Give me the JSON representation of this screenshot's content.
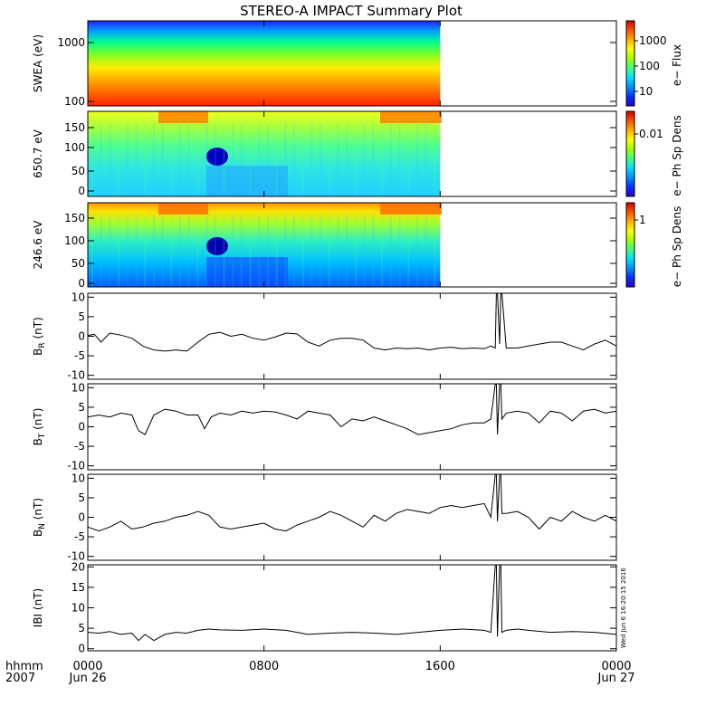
{
  "title": "STEREO-A IMPACT Summary Plot",
  "time_axis": {
    "corner_labels": [
      "hhmm",
      "2007"
    ],
    "ticks": [
      {
        "t": 0,
        "label": "0000",
        "date": "Jun 26"
      },
      {
        "t": 8,
        "label": "0800",
        "date": ""
      },
      {
        "t": 16,
        "label": "1600",
        "date": ""
      },
      {
        "t": 24,
        "label": "0000",
        "date": "Jun 27"
      }
    ],
    "range_hours": [
      0,
      24
    ]
  },
  "colors": {
    "line": "#000000",
    "spectral": [
      "#3000d0",
      "#0030ff",
      "#0090ff",
      "#00e0ff",
      "#40ff80",
      "#a0ff00",
      "#ffff00",
      "#ffb000",
      "#ff5000",
      "#d00000"
    ]
  },
  "side_stamp": "Wed Jun 6 16:20:15 2016",
  "spectrograms": [
    {
      "ylabel": "SWEA (eV)",
      "cbar_label": "e− Flux",
      "y_ticks": [
        "1000",
        "100"
      ],
      "cbar_ticks": [
        "1000",
        "100",
        "10"
      ],
      "data_end_hours": 16
    },
    {
      "ylabel": "650.7 eV",
      "cbar_label": "e− Ph Sp Dens",
      "y_ticks": [
        "150",
        "100",
        "50",
        "0"
      ],
      "cbar_ticks": [
        "0.01"
      ],
      "data_end_hours": 16
    },
    {
      "ylabel": "246.6 eV",
      "cbar_label": "e− Ph Sp Dens",
      "y_ticks": [
        "150",
        "100",
        "50",
        "0"
      ],
      "cbar_ticks": [
        "1"
      ],
      "data_end_hours": 16
    }
  ],
  "chart_data": [
    {
      "type": "line",
      "ylabel": "B_R (nT)",
      "label_main": "B",
      "label_sub": "R",
      "label_unit": " (nT)",
      "ylim": [
        -11,
        11
      ],
      "yticks": [
        10,
        5,
        0,
        -5,
        -10
      ],
      "x": [
        0,
        0.3,
        0.6,
        1,
        1.5,
        2,
        2.5,
        3,
        3.5,
        4,
        4.5,
        5,
        5.5,
        6,
        6.5,
        7,
        7.5,
        8,
        8.5,
        9,
        9.5,
        10,
        10.5,
        11,
        11.5,
        12,
        12.5,
        13,
        13.5,
        14,
        14.5,
        15,
        15.5,
        16,
        16.5,
        17,
        17.5,
        18,
        18.3,
        18.5,
        18.55,
        18.6,
        18.7,
        18.75,
        18.8,
        19,
        19.5,
        20,
        20.5,
        21,
        21.5,
        22,
        22.5,
        23,
        23.5,
        24
      ],
      "values": [
        0.2,
        0.5,
        -1.5,
        0.8,
        0.3,
        -0.5,
        -2.5,
        -3.5,
        -3.8,
        -3.5,
        -3.8,
        -1.5,
        0.5,
        1.0,
        0.0,
        0.5,
        -0.5,
        -1.0,
        -0.2,
        0.8,
        0.6,
        -1.5,
        -2.5,
        -1.0,
        -0.5,
        -0.5,
        -1.0,
        -3.0,
        -3.5,
        -3.0,
        -3.2,
        -3.0,
        -3.5,
        -3.0,
        -2.8,
        -3.2,
        -3.0,
        -3.2,
        -2.5,
        -3.0,
        11,
        11,
        -2.0,
        11,
        11,
        -3.0,
        -3.0,
        -2.5,
        -2.0,
        -1.5,
        -1.5,
        -2.5,
        -3.5,
        -2.0,
        -1.0,
        -2.5
      ]
    },
    {
      "type": "line",
      "ylabel": "B_T (nT)",
      "label_main": "B",
      "label_sub": "T",
      "label_unit": " (nT)",
      "ylim": [
        -11,
        11
      ],
      "yticks": [
        10,
        5,
        0,
        -5,
        -10
      ],
      "x": [
        0,
        0.5,
        1,
        1.5,
        2,
        2.3,
        2.6,
        3,
        3.5,
        4,
        4.5,
        5,
        5.3,
        5.6,
        6,
        6.5,
        7,
        7.5,
        8,
        8.5,
        9,
        9.5,
        10,
        10.5,
        11,
        11.5,
        12,
        12.5,
        13,
        13.5,
        14,
        14.5,
        15,
        15.5,
        16,
        16.5,
        17,
        17.5,
        18,
        18.3,
        18.5,
        18.55,
        18.6,
        18.7,
        18.75,
        18.8,
        19,
        19.5,
        20,
        20.5,
        21,
        21.5,
        22,
        22.5,
        23,
        23.5,
        24
      ],
      "values": [
        2.5,
        3.0,
        2.5,
        3.5,
        3.0,
        -1.0,
        -2.0,
        3.0,
        4.5,
        4.0,
        3.0,
        3.0,
        -0.5,
        2.5,
        3.5,
        3.0,
        4.0,
        3.5,
        4.0,
        3.8,
        3.0,
        2.0,
        4.0,
        3.5,
        3.0,
        0.0,
        2.0,
        1.5,
        2.5,
        1.5,
        0.5,
        -0.5,
        -2.0,
        -1.5,
        -1.0,
        -0.5,
        0.5,
        1.0,
        1.0,
        2.0,
        11,
        11,
        -2.0,
        11,
        11,
        2.0,
        3.5,
        4.0,
        3.5,
        1.0,
        4.0,
        3.5,
        1.5,
        4.0,
        4.5,
        3.5,
        4.0
      ]
    },
    {
      "type": "line",
      "ylabel": "B_N (nT)",
      "label_main": "B",
      "label_sub": "N",
      "label_unit": " (nT)",
      "ylim": [
        -11,
        11
      ],
      "yticks": [
        10,
        5,
        0,
        -5,
        -10
      ],
      "x": [
        0,
        0.5,
        1,
        1.5,
        2,
        2.5,
        3,
        3.5,
        4,
        4.5,
        5,
        5.5,
        6,
        6.5,
        7,
        7.5,
        8,
        8.5,
        9,
        9.5,
        10,
        10.5,
        11,
        11.5,
        12,
        12.5,
        13,
        13.5,
        14,
        14.5,
        15,
        15.5,
        16,
        16.5,
        17,
        17.5,
        18,
        18.3,
        18.5,
        18.55,
        18.6,
        18.7,
        18.75,
        18.8,
        19,
        19.5,
        20,
        20.5,
        21,
        21.5,
        22,
        22.5,
        23,
        23.5,
        24
      ],
      "values": [
        -2.5,
        -3.5,
        -2.5,
        -1.0,
        -3.0,
        -2.5,
        -1.5,
        -1.0,
        0.0,
        0.5,
        1.5,
        0.5,
        -2.5,
        -3.0,
        -2.5,
        -2.0,
        -1.5,
        -3.0,
        -3.5,
        -2.0,
        -1.0,
        0.0,
        1.5,
        0.5,
        -1.0,
        -2.5,
        0.5,
        -1.0,
        1.0,
        2.0,
        1.5,
        1.0,
        2.5,
        3.0,
        2.5,
        3.0,
        3.5,
        0.0,
        11,
        11,
        -1.0,
        11,
        11,
        1.0,
        1.0,
        1.5,
        0.0,
        -3.0,
        0.0,
        -1.0,
        1.5,
        0.0,
        -1.0,
        0.5,
        -1.0
      ]
    },
    {
      "type": "line",
      "ylabel": "|B| (nT)",
      "label_main": "IBI",
      "label_sub": "",
      "label_unit": " (nT)",
      "ylim": [
        -0.5,
        20.5
      ],
      "yticks": [
        20,
        15,
        10,
        5,
        0
      ],
      "x": [
        0,
        0.5,
        1,
        1.5,
        2,
        2.3,
        2.6,
        3,
        3.5,
        4,
        4.5,
        5,
        5.5,
        6,
        7,
        8,
        9,
        10,
        11,
        12,
        13,
        14,
        15,
        16,
        17,
        18,
        18.3,
        18.5,
        18.55,
        18.6,
        18.7,
        18.75,
        18.8,
        19,
        19.5,
        20,
        21,
        22,
        23,
        24
      ],
      "values": [
        4.0,
        3.8,
        4.2,
        3.5,
        3.8,
        2.0,
        3.5,
        2.0,
        3.5,
        4.0,
        3.8,
        4.5,
        4.8,
        4.6,
        4.5,
        4.8,
        4.5,
        3.5,
        3.8,
        4.0,
        3.8,
        3.5,
        4.0,
        4.5,
        4.8,
        4.5,
        4.0,
        21,
        21,
        3.0,
        21,
        21,
        4.0,
        4.5,
        4.8,
        4.5,
        4.0,
        4.2,
        4.0,
        3.5
      ]
    }
  ]
}
